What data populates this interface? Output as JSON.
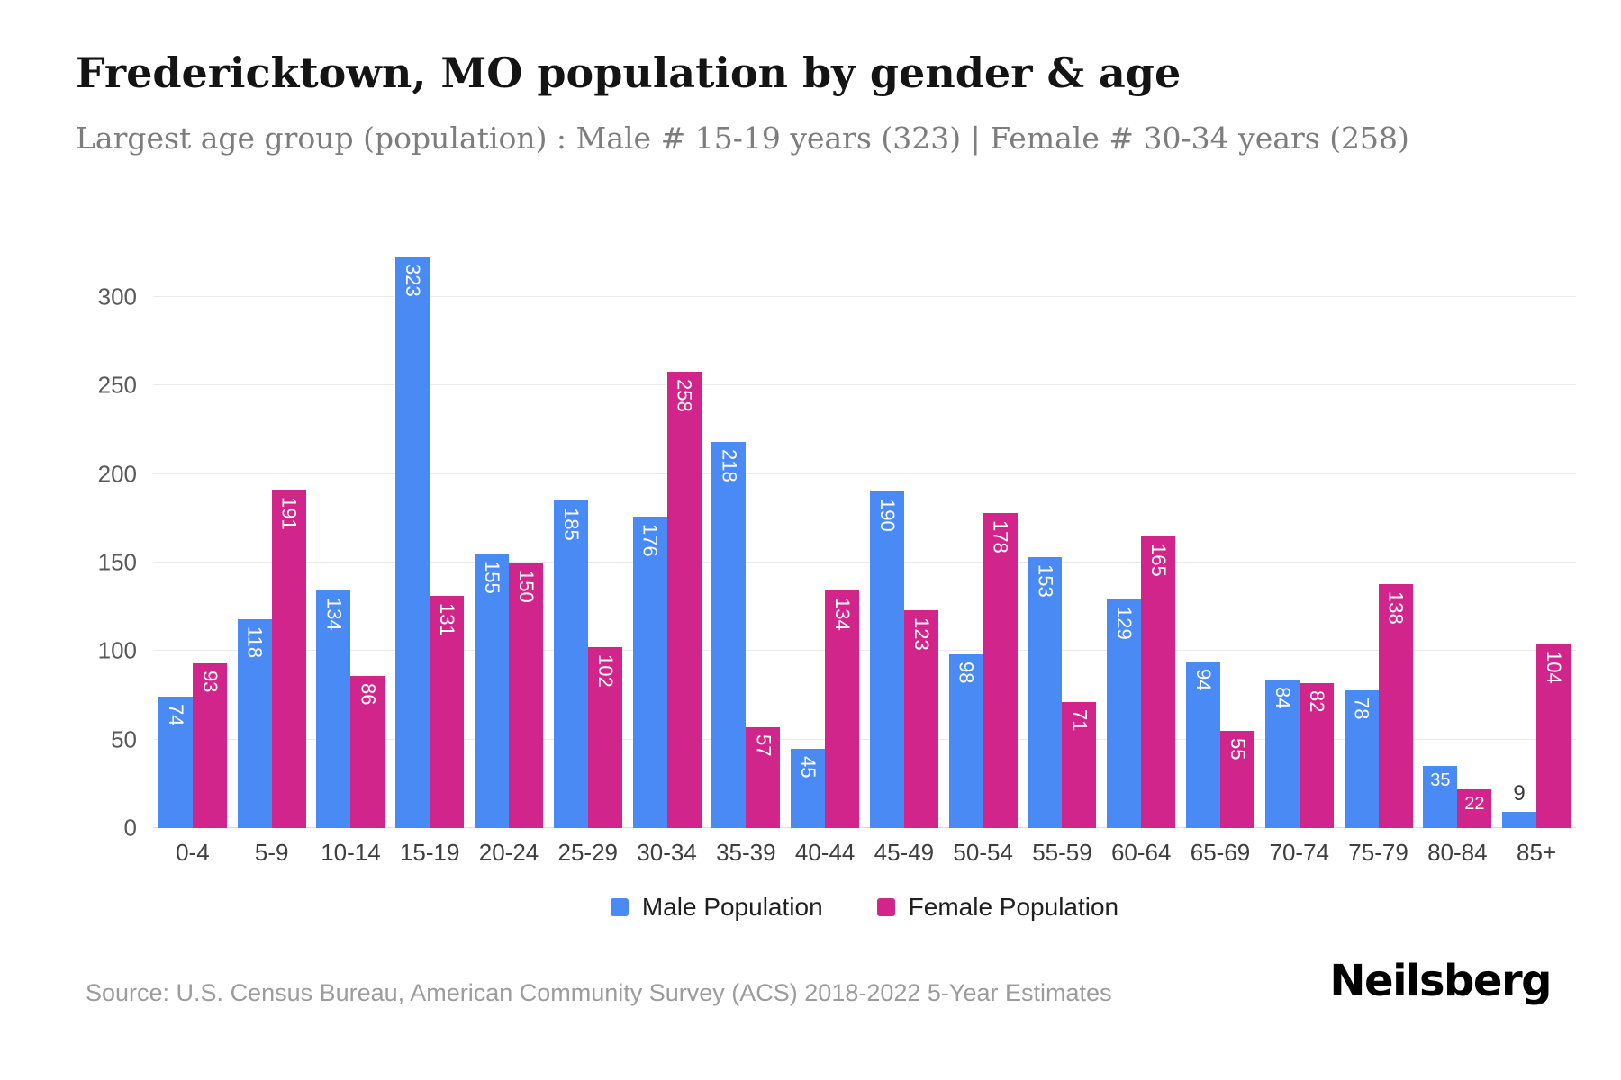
{
  "chart_data": {
    "type": "bar",
    "title": "Fredericktown, MO population by gender & age",
    "subtitle": "Largest age group (population) : Male # 15-19 years (323) | Female # 30-34 years (258)",
    "categories": [
      "0-4",
      "5-9",
      "10-14",
      "15-19",
      "20-24",
      "25-29",
      "30-34",
      "35-39",
      "40-44",
      "45-49",
      "50-54",
      "55-59",
      "60-64",
      "65-69",
      "70-74",
      "75-79",
      "80-84",
      "85+"
    ],
    "series": [
      {
        "name": "Male Population",
        "color": "#4a8af4",
        "values": [
          74,
          118,
          134,
          323,
          155,
          185,
          176,
          218,
          45,
          190,
          98,
          153,
          129,
          94,
          84,
          78,
          35,
          9
        ]
      },
      {
        "name": "Female Population",
        "color": "#d2258c",
        "values": [
          93,
          191,
          86,
          131,
          150,
          102,
          258,
          57,
          134,
          123,
          178,
          71,
          165,
          55,
          82,
          138,
          22,
          104
        ]
      }
    ],
    "xlabel": "",
    "ylabel": "",
    "ylim": [
      0,
      300
    ],
    "yticks": [
      0,
      50,
      100,
      150,
      200,
      250,
      300
    ],
    "grid": true,
    "legend_position": "bottom",
    "value_labels": true
  },
  "footer": {
    "source": "Source: U.S. Census Bureau, American Community Survey (ACS) 2018-2022 5-Year Estimates",
    "logo": "Neilsberg"
  }
}
